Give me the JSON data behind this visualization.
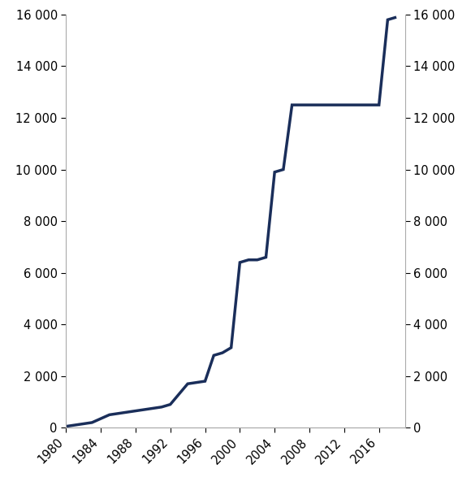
{
  "years": [
    1980,
    1981,
    1982,
    1983,
    1984,
    1985,
    1986,
    1987,
    1988,
    1989,
    1990,
    1991,
    1992,
    1993,
    1994,
    1995,
    1996,
    1997,
    1998,
    1999,
    2000,
    2001,
    2002,
    2003,
    2004,
    2005,
    2006,
    2007,
    2008,
    2009,
    2010,
    2011,
    2012,
    2013,
    2014,
    2015,
    2016,
    2017,
    2018
  ],
  "values": [
    50,
    100,
    150,
    200,
    350,
    500,
    550,
    600,
    650,
    700,
    750,
    800,
    900,
    1300,
    1700,
    1750,
    1800,
    2800,
    2900,
    3100,
    6400,
    6500,
    6500,
    6600,
    9900,
    10000,
    12500,
    12500,
    12500,
    12500,
    12500,
    12500,
    12500,
    12500,
    12500,
    12500,
    12500,
    15800,
    15900
  ],
  "line_color": "#1a2e5a",
  "line_width": 2.5,
  "xlim": [
    1980,
    2019
  ],
  "ylim": [
    0,
    16000
  ],
  "yticks": [
    0,
    2000,
    4000,
    6000,
    8000,
    10000,
    12000,
    14000,
    16000
  ],
  "xticks": [
    1980,
    1984,
    1988,
    1992,
    1996,
    2000,
    2004,
    2008,
    2012,
    2016
  ],
  "background_color": "#ffffff",
  "tick_label_fontsize": 10.5,
  "spine_color": "#aaaaaa"
}
